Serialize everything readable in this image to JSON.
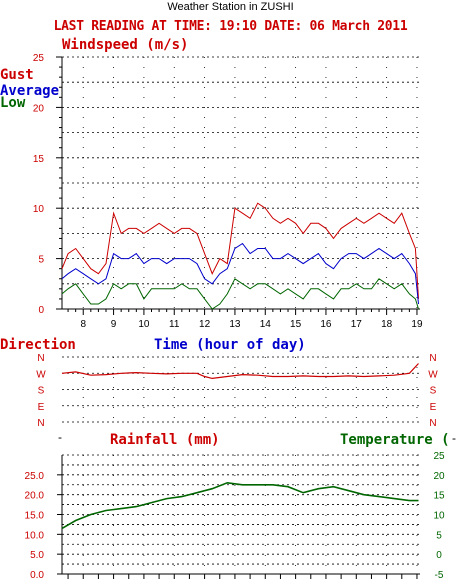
{
  "header": {
    "title": "Weather Station in ZUSHI",
    "subtitle": "LAST READING AT TIME: 19:10  DATE: 06 March 2011"
  },
  "colors": {
    "gust": "#cc0000",
    "average": "#0000cc",
    "low": "#006600",
    "direction": "#cc0000",
    "temperature": "#006600",
    "axis": "#000000"
  },
  "chart_data": [
    {
      "type": "line",
      "title": "Windspeed (m/s)",
      "xlabel": "Time (hour of day)",
      "ylabel": "",
      "xlim": [
        7.3,
        19.1
      ],
      "ylim": [
        0,
        25
      ],
      "x_ticks": [
        8,
        9,
        10,
        11,
        12,
        13,
        14,
        15,
        16,
        17,
        18,
        19
      ],
      "y_ticks": [
        0,
        5,
        10,
        15,
        20,
        25
      ],
      "grid": true,
      "legend": "top-left",
      "series": [
        {
          "name": "Gust",
          "color": "#cc0000",
          "x": [
            7.3,
            7.5,
            7.75,
            8.0,
            8.25,
            8.5,
            8.75,
            9.0,
            9.25,
            9.5,
            9.75,
            10.0,
            10.25,
            10.5,
            10.75,
            11.0,
            11.25,
            11.5,
            11.75,
            12.0,
            12.25,
            12.5,
            12.75,
            13.0,
            13.25,
            13.5,
            13.75,
            14.0,
            14.25,
            14.5,
            14.75,
            15.0,
            15.25,
            15.5,
            15.75,
            16.0,
            16.25,
            16.5,
            16.75,
            17.0,
            17.25,
            17.5,
            17.75,
            18.0,
            18.25,
            18.5,
            18.75,
            18.95,
            19.05
          ],
          "values": [
            4.0,
            5.5,
            6.0,
            5.0,
            4.0,
            3.5,
            4.5,
            9.5,
            7.5,
            8.0,
            8.0,
            7.5,
            8.0,
            8.5,
            8.0,
            7.5,
            8.0,
            8.0,
            7.5,
            5.5,
            3.5,
            5.0,
            4.5,
            10.0,
            9.5,
            9.0,
            10.5,
            10.0,
            9.0,
            8.5,
            9.0,
            8.5,
            7.5,
            8.5,
            8.5,
            8.0,
            7.0,
            8.0,
            8.5,
            9.0,
            8.5,
            9.0,
            9.5,
            9.0,
            8.5,
            9.5,
            7.5,
            6.0,
            1.0
          ]
        },
        {
          "name": "Average",
          "color": "#0000cc",
          "x": [
            7.3,
            7.5,
            7.75,
            8.0,
            8.25,
            8.5,
            8.75,
            9.0,
            9.25,
            9.5,
            9.75,
            10.0,
            10.25,
            10.5,
            10.75,
            11.0,
            11.25,
            11.5,
            11.75,
            12.0,
            12.25,
            12.5,
            12.75,
            13.0,
            13.25,
            13.5,
            13.75,
            14.0,
            14.25,
            14.5,
            14.75,
            15.0,
            15.25,
            15.5,
            15.75,
            16.0,
            16.25,
            16.5,
            16.75,
            17.0,
            17.25,
            17.5,
            17.75,
            18.0,
            18.25,
            18.5,
            18.75,
            18.95,
            19.05
          ],
          "values": [
            3.0,
            3.5,
            4.0,
            3.5,
            3.0,
            2.5,
            3.0,
            5.5,
            5.0,
            5.0,
            5.5,
            4.5,
            5.0,
            5.0,
            4.5,
            5.0,
            5.0,
            5.0,
            4.5,
            3.0,
            2.5,
            3.5,
            4.0,
            6.0,
            6.5,
            5.5,
            6.0,
            6.0,
            5.0,
            5.0,
            5.5,
            5.0,
            4.5,
            5.0,
            5.5,
            4.5,
            4.0,
            5.0,
            5.5,
            5.5,
            5.0,
            5.5,
            6.0,
            5.5,
            5.0,
            5.5,
            4.5,
            3.5,
            0.5
          ]
        },
        {
          "name": "Low",
          "color": "#006600",
          "x": [
            7.3,
            7.5,
            7.75,
            8.0,
            8.25,
            8.5,
            8.75,
            9.0,
            9.25,
            9.5,
            9.75,
            10.0,
            10.25,
            10.5,
            10.75,
            11.0,
            11.25,
            11.5,
            11.75,
            12.0,
            12.25,
            12.5,
            12.75,
            13.0,
            13.25,
            13.5,
            13.75,
            14.0,
            14.25,
            14.5,
            14.75,
            15.0,
            15.25,
            15.5,
            15.75,
            16.0,
            16.25,
            16.5,
            16.75,
            17.0,
            17.25,
            17.5,
            17.75,
            18.0,
            18.25,
            18.5,
            18.75,
            18.95,
            19.05
          ],
          "values": [
            1.5,
            2.0,
            2.5,
            1.5,
            0.5,
            0.5,
            1.0,
            2.5,
            2.0,
            2.5,
            2.5,
            1.0,
            2.0,
            2.0,
            2.0,
            2.0,
            2.5,
            2.0,
            2.0,
            1.0,
            0.0,
            0.5,
            1.5,
            3.0,
            2.5,
            2.0,
            2.5,
            2.5,
            2.0,
            1.5,
            2.0,
            1.5,
            1.0,
            2.0,
            2.0,
            1.5,
            1.0,
            2.0,
            2.0,
            2.5,
            2.0,
            2.0,
            3.0,
            2.5,
            2.0,
            2.5,
            1.5,
            1.0,
            0.0
          ]
        }
      ]
    },
    {
      "type": "line",
      "title": "Direction",
      "y_categories": [
        "N",
        "W",
        "S",
        "E",
        "N"
      ],
      "xlim": [
        7.3,
        19.1
      ],
      "grid": true,
      "series": [
        {
          "name": "Direction",
          "color": "#cc0000",
          "x": [
            7.3,
            7.75,
            8.25,
            8.75,
            9.25,
            9.75,
            10.25,
            10.75,
            11.25,
            11.75,
            12.0,
            12.25,
            12.75,
            13.25,
            13.75,
            14.25,
            14.75,
            15.25,
            15.75,
            16.25,
            16.75,
            17.25,
            17.75,
            18.25,
            18.75,
            19.05
          ],
          "values": [
            0.25,
            0.23,
            0.28,
            0.27,
            0.25,
            0.24,
            0.25,
            0.26,
            0.25,
            0.25,
            0.3,
            0.33,
            0.3,
            0.27,
            0.28,
            0.3,
            0.3,
            0.29,
            0.3,
            0.3,
            0.29,
            0.3,
            0.29,
            0.28,
            0.25,
            0.1
          ]
        }
      ]
    },
    {
      "type": "line",
      "title": "Rainfall (mm)",
      "ylabel": "Rainfall (mm)",
      "ylabel_right": "Temperature (",
      "ylim": [
        0,
        30
      ],
      "y_ticks": [
        0.0,
        5.0,
        10.0,
        15.0,
        20.0,
        25.0
      ],
      "ylim_right": [
        -5,
        25
      ],
      "y_ticks_right": [
        -5,
        0,
        5,
        10,
        15,
        20,
        25
      ],
      "xlim": [
        7.3,
        19.1
      ],
      "grid": true,
      "series": [
        {
          "name": "Temperature",
          "color": "#006600",
          "x": [
            7.3,
            7.75,
            8.25,
            8.75,
            9.25,
            9.75,
            10.25,
            10.75,
            11.25,
            11.75,
            12.25,
            12.75,
            13.25,
            13.75,
            14.25,
            14.75,
            15.25,
            15.75,
            16.25,
            16.75,
            17.25,
            17.75,
            18.25,
            18.75,
            19.05
          ],
          "values": [
            6.5,
            8.5,
            10.0,
            11.0,
            11.5,
            12.0,
            13.0,
            14.0,
            14.5,
            15.5,
            16.5,
            18.0,
            17.5,
            17.5,
            17.5,
            17.0,
            15.5,
            16.5,
            17.0,
            16.0,
            15.0,
            14.5,
            14.0,
            13.5,
            13.5
          ]
        }
      ]
    }
  ],
  "labels": {
    "windspeed_title": "Windspeed (m/s)",
    "legend_gust": "Gust",
    "legend_average": "Average",
    "legend_low": "Low",
    "time_label": "Time (hour of day)",
    "direction_label": "Direction",
    "rainfall_label": "Rainfall (mm)",
    "temperature_label": "Temperature (",
    "dash_left": "-",
    "dash_right": "-"
  }
}
